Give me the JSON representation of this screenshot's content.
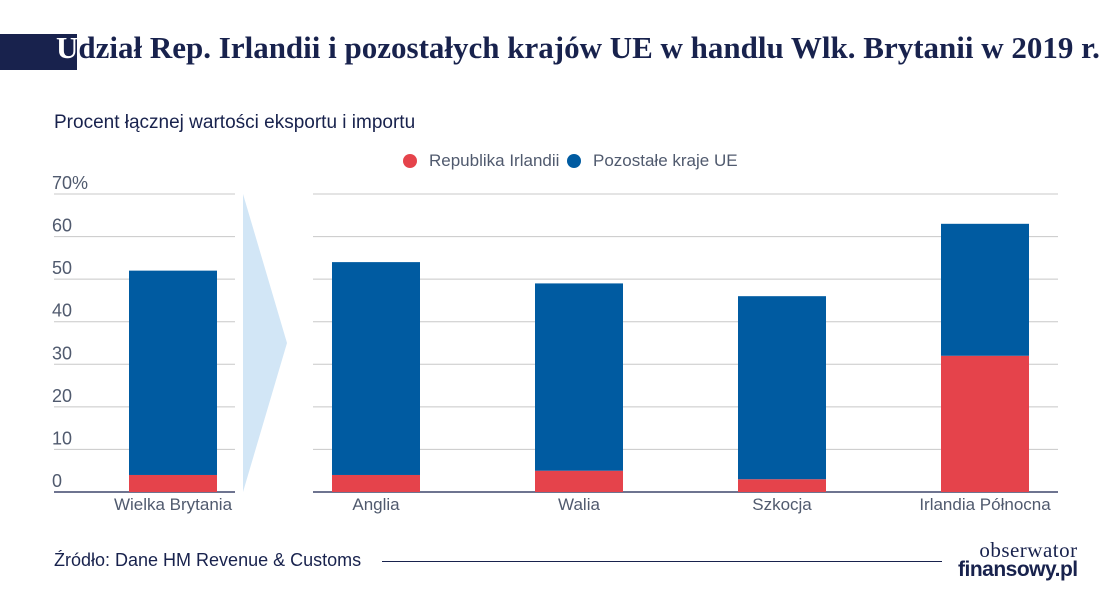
{
  "title": "Udział Rep. Irlandii i pozostałych krajów UE w handlu Wlk. Brytanii w 2019 r.",
  "title_first": "U",
  "title_rest": "dział Rep. Irlandii i pozostałych krajów UE w handlu Wlk. Brytanii w 2019 r.",
  "subtitle": "Procent łącznej wartości eksportu i importu",
  "source": "Źródło: Dane HM Revenue & Customs",
  "logo": {
    "line1": "obserwator",
    "line2": "finansowy.pl"
  },
  "colors": {
    "republika_irlandii": "#e5434b",
    "pozostale_kraje_ue": "#005ba1",
    "arrow": "#d2e6f6",
    "grid": "#c8c8c8",
    "title_bar": "#18224d"
  },
  "chart_data": {
    "type": "bar",
    "stacked": true,
    "categories": [
      "Wielka Brytania",
      "Anglia",
      "Walia",
      "Szkocja",
      "Irlandia Północna"
    ],
    "series": [
      {
        "name": "Republika Irlandii",
        "values": [
          4,
          4,
          5,
          3,
          32
        ]
      },
      {
        "name": "Pozostałe kraje UE",
        "values": [
          48,
          50,
          44,
          43,
          31
        ]
      }
    ],
    "totals": [
      52,
      54,
      49,
      46,
      63
    ],
    "ylim": [
      0,
      70
    ],
    "yticks": [
      0,
      10,
      20,
      30,
      40,
      50,
      60,
      70
    ],
    "ytick_labels": [
      "0",
      "10",
      "20",
      "30",
      "40",
      "50",
      "60",
      "70%"
    ],
    "grid": true,
    "legend_position": "top"
  }
}
